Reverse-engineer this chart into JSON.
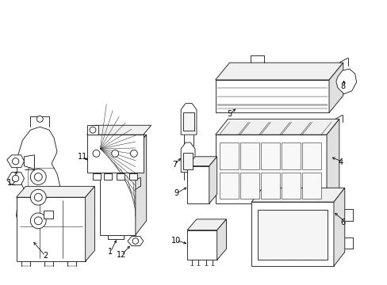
{
  "background_color": "#ffffff",
  "line_color": "#222222",
  "label_color": "#000000",
  "figsize": [
    4.89,
    3.6
  ],
  "dpi": 100,
  "label_fontsize": 7.5
}
